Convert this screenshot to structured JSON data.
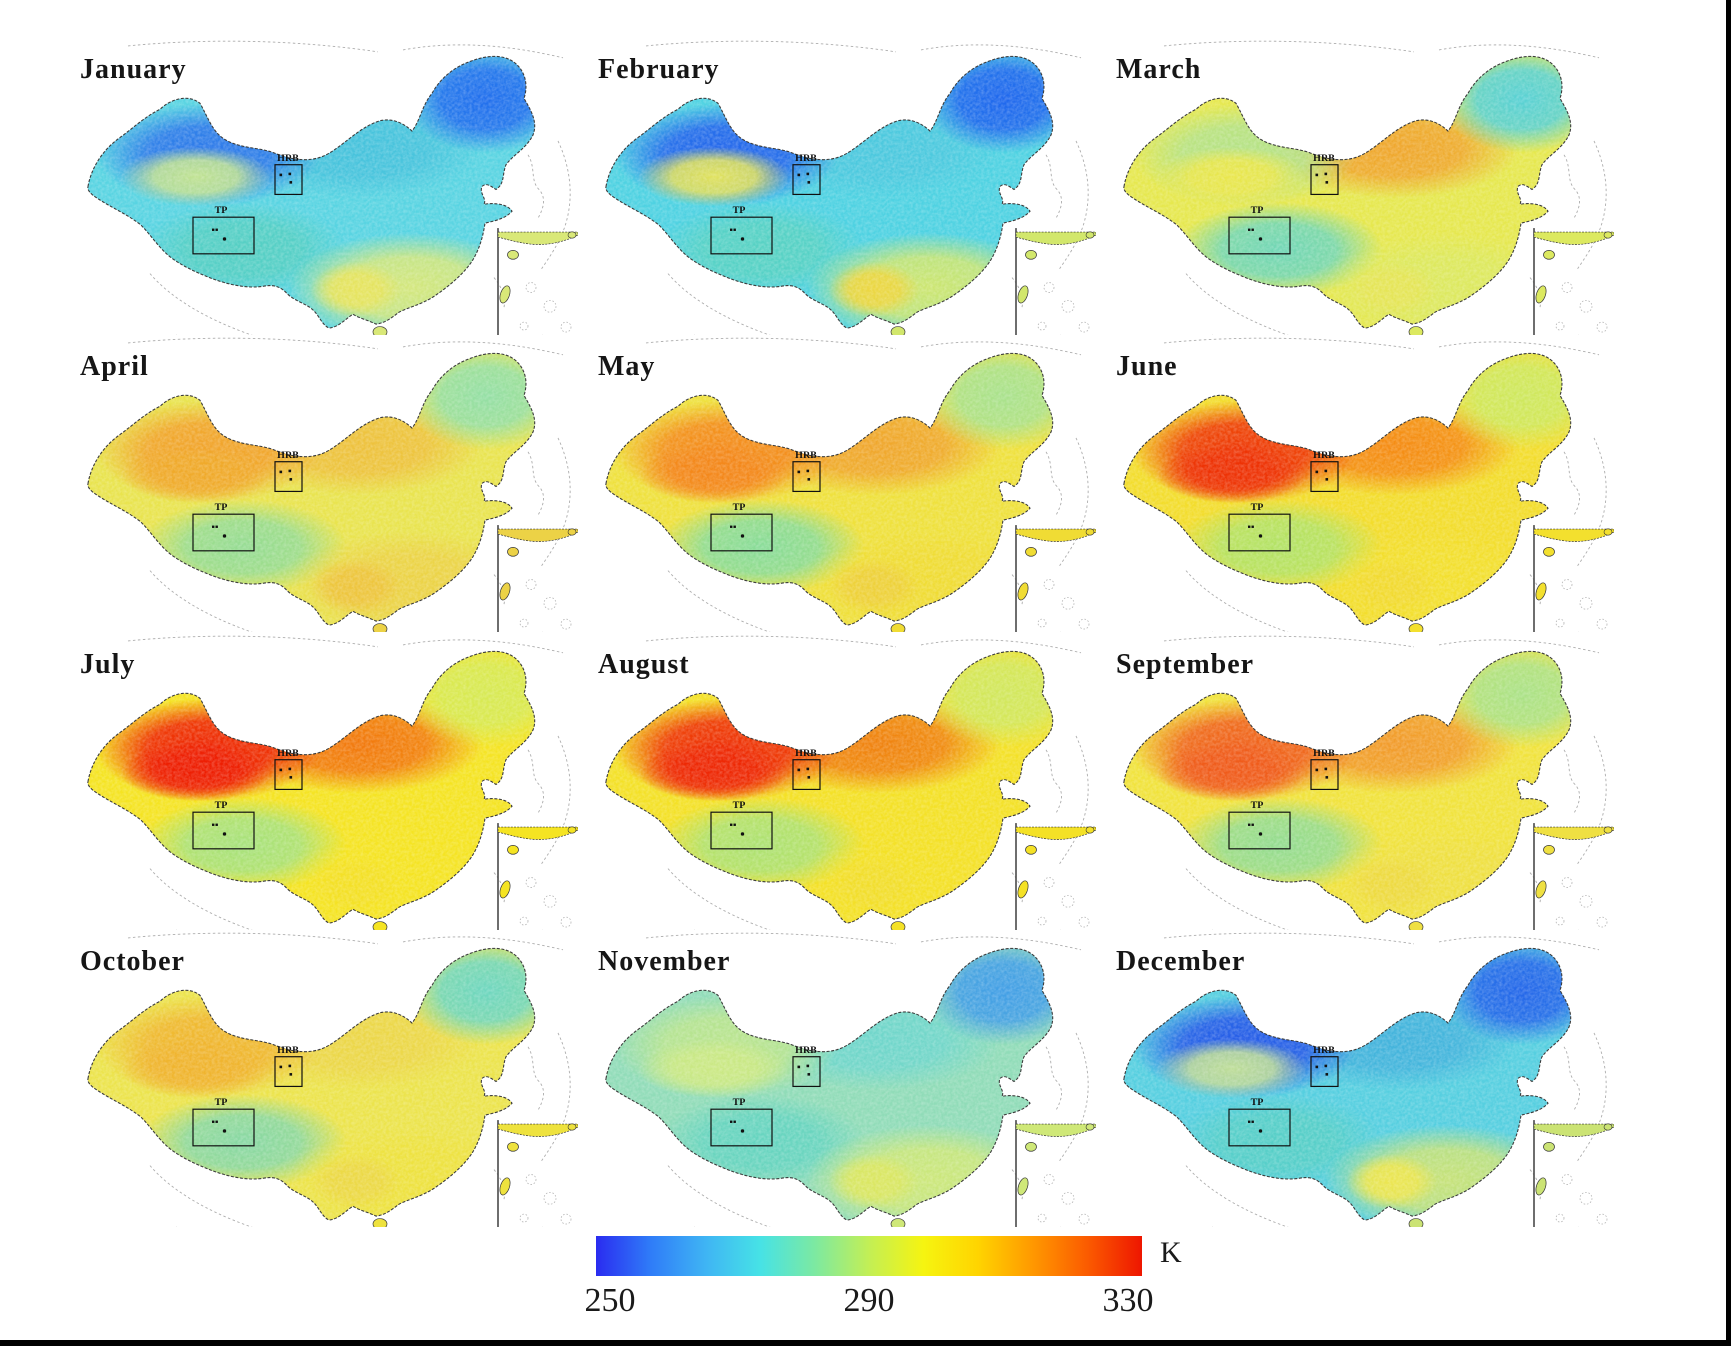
{
  "figure": {
    "type": "monthly-lst-map-grid",
    "region_boxes": {
      "hrb_label": "HRB",
      "tp_label": "TP"
    },
    "colorbar": {
      "unit": "K",
      "tick_labels": [
        "250",
        "290",
        "330"
      ],
      "min": 250,
      "max": 330,
      "gradient": [
        "#2a2cf0",
        "#2f7cf8",
        "#3fb4f4",
        "#46e2e6",
        "#7ce9a2",
        "#c3ef55",
        "#f6f410",
        "#ffd400",
        "#ff9800",
        "#fb5b00",
        "#ee1600"
      ]
    },
    "months": [
      {
        "label": "January",
        "palette": {
          "base": "#58d4e2",
          "north": "#46c2dc",
          "nw": "#2b74ea",
          "tarim": "#c6e78e",
          "ne": "#1e6aee",
          "tibet": "#55cfc2",
          "south": "#d9e878",
          "yunnan": "#e8e45c"
        }
      },
      {
        "label": "February",
        "palette": {
          "base": "#4ed2e2",
          "north": "#4cc8de",
          "nw": "#2160ec",
          "tarim": "#e8e756",
          "ne": "#1c62ee",
          "tibet": "#58d2c2",
          "south": "#d2e76c",
          "yunnan": "#eed63e"
        }
      },
      {
        "label": "March",
        "palette": {
          "base": "#e6e84e",
          "north": "#f0a42c",
          "nw": "#b2e28a",
          "tarim": "#ece74a",
          "ne": "#52d0da",
          "tibet": "#6cd6ba",
          "south": "#dce960",
          "yunnan": "#e6e556"
        }
      },
      {
        "label": "April",
        "palette": {
          "base": "#e9e44e",
          "north": "#eec03c",
          "nw": "#f2a02a",
          "tarim": "#f0aa2a",
          "ne": "#90dfa8",
          "tibet": "#92dc96",
          "south": "#ecd246",
          "yunnan": "#eec43c"
        }
      },
      {
        "label": "May",
        "palette": {
          "base": "#efe13c",
          "north": "#f0a42c",
          "nw": "#f4871a",
          "tarim": "#f4871a",
          "ne": "#a6e290",
          "tibet": "#84dc9c",
          "south": "#f0dc34",
          "yunnan": "#eed03a"
        }
      },
      {
        "label": "June",
        "palette": {
          "base": "#f3dd2c",
          "north": "#f58812",
          "nw": "#ee3004",
          "tarim": "#ee3004",
          "ne": "#cde960",
          "tibet": "#b0e368",
          "south": "#f3e02e",
          "yunnan": "#f2da30"
        }
      },
      {
        "label": "July",
        "palette": {
          "base": "#f5e422",
          "north": "#f2740c",
          "nw": "#ee1c02",
          "tarim": "#ee1c02",
          "ne": "#d6ea56",
          "tibet": "#a4e280",
          "south": "#f5e422",
          "yunnan": "#f4e026"
        }
      },
      {
        "label": "August",
        "palette": {
          "base": "#f4e126",
          "north": "#f07e0e",
          "nw": "#ee2604",
          "tarim": "#ee2604",
          "ne": "#d0e860",
          "tibet": "#aae276",
          "south": "#f4e126",
          "yunnan": "#f2de2c"
        }
      },
      {
        "label": "September",
        "palette": {
          "base": "#f1e33c",
          "north": "#f2982a",
          "nw": "#f05a1a",
          "tarim": "#f05a1a",
          "ne": "#a8e28a",
          "tibet": "#90dc94",
          "south": "#efe042",
          "yunnan": "#eeda40"
        }
      },
      {
        "label": "October",
        "palette": {
          "base": "#ece44c",
          "north": "#ecd648",
          "nw": "#f0b42e",
          "tarim": "#f0b42e",
          "ne": "#68d6c4",
          "tibet": "#84d8a8",
          "south": "#eee23e",
          "yunnan": "#ecd846"
        }
      },
      {
        "label": "November",
        "palette": {
          "base": "#90dcb8",
          "north": "#6ed6cc",
          "nw": "#bce58c",
          "tarim": "#cce984",
          "ne": "#3e9ce8",
          "tibet": "#64d4c0",
          "south": "#cfe878",
          "yunnan": "#dce760"
        }
      },
      {
        "label": "December",
        "palette": {
          "base": "#55cfe0",
          "north": "#42b2dc",
          "nw": "#2254e8",
          "tarim": "#c4e394",
          "ne": "#2162ea",
          "tibet": "#57cfc6",
          "south": "#cbe374",
          "yunnan": "#eee64e"
        }
      }
    ]
  },
  "chart_data": {
    "type": "heatmap",
    "subtype": "choropleth-map-grid",
    "months": [
      "January",
      "February",
      "March",
      "April",
      "May",
      "June",
      "July",
      "August",
      "September",
      "October",
      "November",
      "December"
    ],
    "variable_unit": "K",
    "colorbar_ticks": [
      250,
      290,
      330
    ],
    "value_range": [
      250,
      330
    ],
    "region_annotations": [
      "HRB",
      "TP"
    ],
    "legend_position": "bottom-center",
    "grid": {
      "rows": 4,
      "cols": 3
    }
  }
}
